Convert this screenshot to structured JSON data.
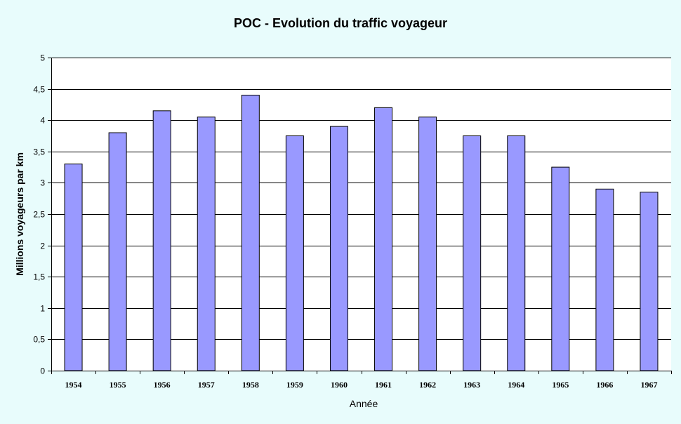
{
  "chart_data": {
    "type": "bar",
    "title": "POC - Evolution du traffic voyageur",
    "xlabel": "Année",
    "ylabel": "Millions voyageurs par km",
    "categories": [
      "1954",
      "1955",
      "1956",
      "1957",
      "1958",
      "1959",
      "1960",
      "1961",
      "1962",
      "1963",
      "1964",
      "1965",
      "1966",
      "1967"
    ],
    "values": [
      3.3,
      3.8,
      4.15,
      4.05,
      4.4,
      3.75,
      3.9,
      4.2,
      4.05,
      3.75,
      3.75,
      3.25,
      2.9,
      2.85
    ],
    "ylim": [
      0,
      5
    ],
    "yticks": [
      0,
      0.5,
      1,
      1.5,
      2,
      2.5,
      3,
      3.5,
      4,
      4.5,
      5
    ],
    "ytick_labels": [
      "0",
      "0,5",
      "1",
      "1,5",
      "2",
      "2,5",
      "3",
      "3,5",
      "4",
      "4,5",
      "5"
    ],
    "grid": true,
    "legend": "none",
    "colors": {
      "background": "#e8fcfc",
      "plot_area": "#ffffff",
      "bar_fill": "#9999ff",
      "bar_stroke": "#000000",
      "grid": "#000000"
    }
  }
}
